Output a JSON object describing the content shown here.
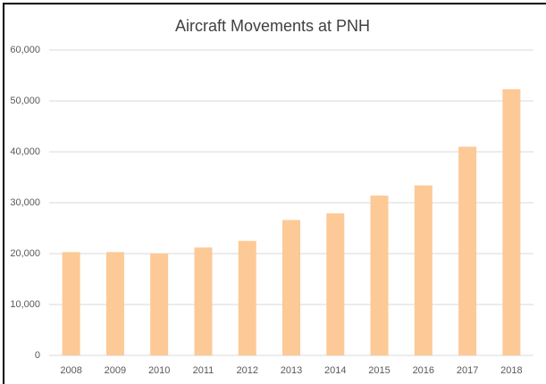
{
  "chart_data": {
    "type": "bar",
    "title": "Aircraft Movements at PNH",
    "categories": [
      "2008",
      "2009",
      "2010",
      "2011",
      "2012",
      "2013",
      "2014",
      "2015",
      "2016",
      "2017",
      "2018"
    ],
    "values": [
      20300,
      20300,
      20000,
      21200,
      22500,
      26600,
      27900,
      31400,
      33400,
      41000,
      52300
    ],
    "color": "#fdc996",
    "ylim": [
      0,
      60000
    ],
    "yticks": [
      0,
      {
        "value": 10000,
        "label": "10,000"
      },
      {
        "value": 20000,
        "label": "20,000"
      },
      {
        "value": 30000,
        "label": "30,000"
      },
      {
        "value": 40000,
        "label": "40,000"
      },
      {
        "value": 50000,
        "label": "50,000"
      },
      {
        "value": 60000,
        "label": "60,000"
      }
    ],
    "grid": true
  }
}
